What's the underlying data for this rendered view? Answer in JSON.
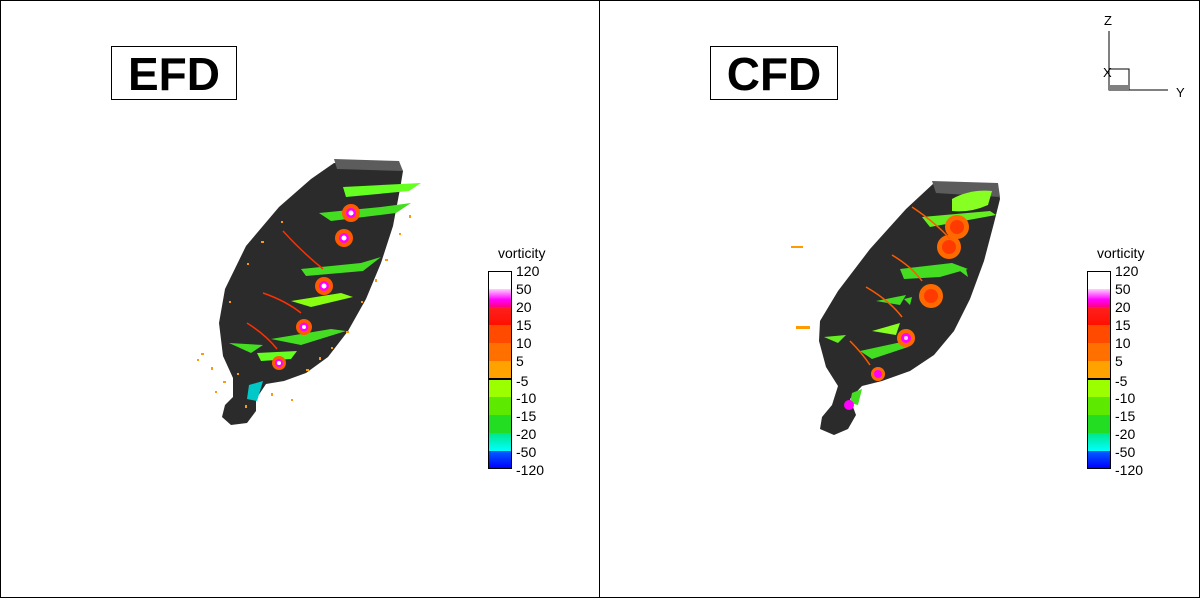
{
  "panels": [
    {
      "title": "EFD",
      "legend": {
        "title": "vorticity",
        "positive_ticks": [
          "120",
          "50",
          "20",
          "15",
          "10",
          "5"
        ],
        "negative_ticks": [
          "-5",
          "-10",
          "-15",
          "-20",
          "-50",
          "-120"
        ]
      }
    },
    {
      "title": "CFD",
      "legend": {
        "title": "vorticity",
        "positive_ticks": [
          "120",
          "50",
          "20",
          "15",
          "10",
          "5"
        ],
        "negative_ticks": [
          "-5",
          "-10",
          "-15",
          "-20",
          "-50",
          "-120"
        ]
      }
    }
  ],
  "axes_triad": {
    "vertical": "Z",
    "horizontal": "Y",
    "depth": "X"
  },
  "colors": {
    "hull": "#2b2b2b",
    "deck": "#585858",
    "positive_scale": [
      "#ffffff",
      "#ff00ff",
      "#ff1a00",
      "#ff5a00",
      "#ff8c00",
      "#ffb000"
    ],
    "negative_scale": [
      "#9aff00",
      "#66ee00",
      "#22dd22",
      "#00e68a",
      "#0000ff"
    ]
  }
}
